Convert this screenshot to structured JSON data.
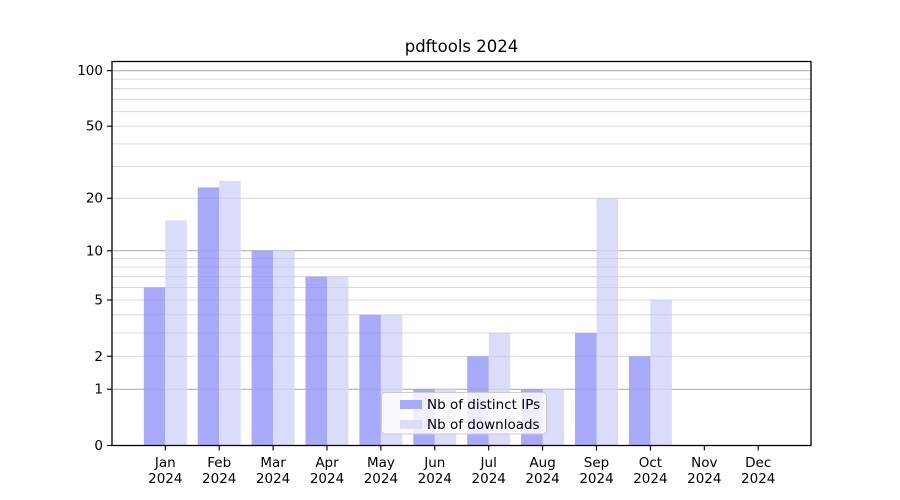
{
  "chart_data": {
    "type": "bar",
    "title": "pdftools 2024",
    "year_label": "2024",
    "month_labels": [
      "Jan",
      "Feb",
      "Mar",
      "Apr",
      "May",
      "Jun",
      "Jul",
      "Aug",
      "Sep",
      "Oct",
      "Nov",
      "Dec"
    ],
    "categories": [
      "Jan 2024",
      "Feb 2024",
      "Mar 2024",
      "Apr 2024",
      "May 2024",
      "Jun 2024",
      "Jul 2024",
      "Aug 2024",
      "Sep 2024",
      "Oct 2024",
      "Nov 2024",
      "Dec 2024"
    ],
    "series": [
      {
        "name": "Nb of distinct IPs",
        "color": "#a9a9fa",
        "values": [
          6,
          23,
          10,
          7,
          4,
          1,
          2,
          1,
          3,
          2,
          0,
          0
        ]
      },
      {
        "name": "Nb of downloads",
        "color": "#dbdbfa",
        "values": [
          15,
          25,
          10,
          7,
          4,
          1,
          3,
          1,
          20,
          5,
          0,
          0
        ]
      }
    ],
    "xlabel": "",
    "ylabel": "",
    "yscale": "log1p",
    "ylim": [
      0,
      112
    ],
    "yticks": [
      100,
      50,
      20,
      10,
      5,
      2,
      1,
      0
    ],
    "grid": "on",
    "legend_position": "lower center",
    "colors": {
      "major_gridline": "#b4b4b4",
      "minor_gridline": "#e8e8e8",
      "axis": "#000000",
      "legend_border": "#cccccc",
      "legend_background": "rgba(255,255,255,0.8)"
    }
  }
}
